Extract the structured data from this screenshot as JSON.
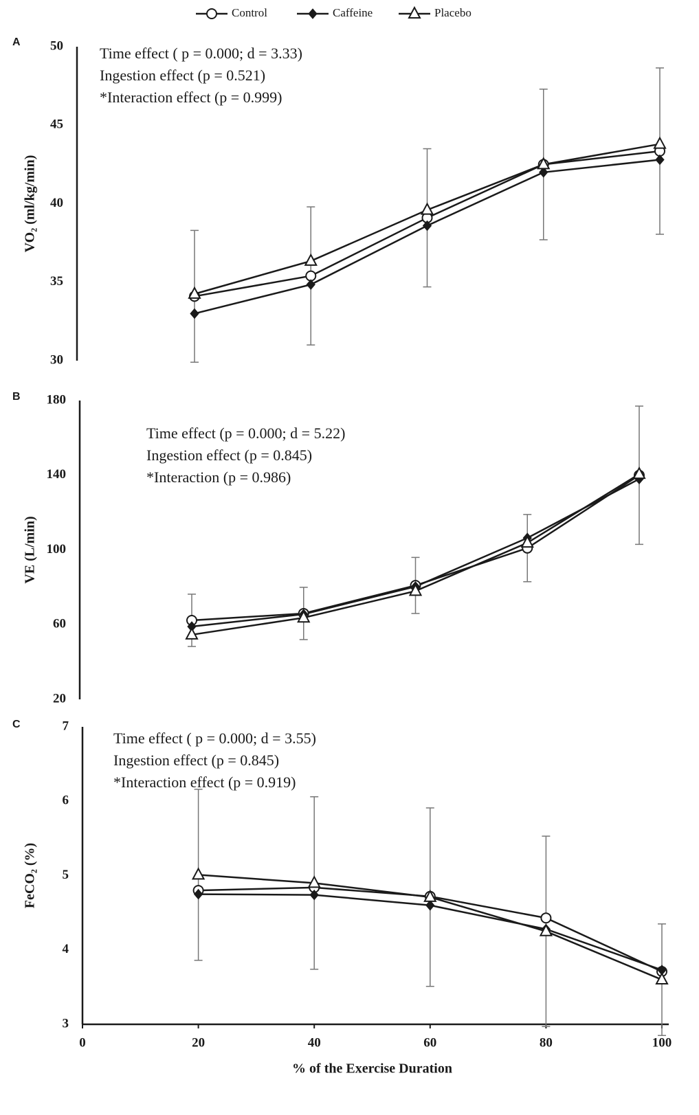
{
  "chart_data": [
    {
      "type": "line",
      "panel": "A",
      "ylabel": "VO₂ (ml/kg/min)",
      "annotations": [
        "Time effect ( p = 0.000;  d = 3.33)",
        "Ingestion effect (p = 0.521)",
        "*Interaction effect (p = 0.999)"
      ],
      "x": [
        20,
        40,
        60,
        80,
        100
      ],
      "ylim": [
        30,
        50
      ],
      "yticks": [
        30,
        35,
        40,
        45,
        50
      ],
      "series": [
        {
          "name": "Control",
          "color": "#1a1a1a",
          "marker": "circle",
          "values": [
            34.1,
            35.4,
            39.1,
            42.5,
            43.35
          ],
          "errors": [
            4.2,
            4.4,
            4.4,
            4.8,
            5.3
          ]
        },
        {
          "name": "Caffeine",
          "color": "#1a1a1a",
          "marker": "diamond",
          "values": [
            33.0,
            34.85,
            38.6,
            42.0,
            42.8
          ]
        },
        {
          "name": "Placebo",
          "color": "#1a1a1a",
          "marker": "triangle",
          "values": [
            34.25,
            36.35,
            39.6,
            42.5,
            43.8
          ]
        }
      ]
    },
    {
      "type": "line",
      "panel": "B",
      "ylabel": "VE (L/min)",
      "annotations": [
        "Time effect (p = 0.000;  d = 5.22)",
        "Ingestion effect (p = 0.845)",
        "*Interaction (p = 0.986)"
      ],
      "x": [
        20,
        40,
        60,
        80,
        100
      ],
      "ylim": [
        20,
        180
      ],
      "yticks": [
        20,
        60,
        100,
        140,
        180
      ],
      "series": [
        {
          "name": "Control",
          "color": "#1a1a1a",
          "marker": "circle",
          "values": [
            62.3,
            66,
            81,
            101,
            140
          ],
          "errors": [
            14,
            14,
            15,
            18,
            37
          ]
        },
        {
          "name": "Caffeine",
          "color": "#1a1a1a",
          "marker": "diamond",
          "values": [
            59,
            65.6,
            80.4,
            106.4,
            138
          ]
        },
        {
          "name": "Placebo",
          "color": "#1a1a1a",
          "marker": "triangle",
          "values": [
            54.6,
            63.7,
            78,
            103.8,
            140.6
          ]
        }
      ]
    },
    {
      "type": "line",
      "panel": "C",
      "ylabel": "FeCO₂ (%)",
      "xlabel": "% of the Exercise Duration",
      "annotations": [
        "Time effect ( p = 0.000;  d = 3.55)",
        "Ingestion effect (p = 0.845)",
        "*Interaction effect (p = 0.919)"
      ],
      "x": [
        20,
        40,
        60,
        80,
        100
      ],
      "xlim": [
        0,
        100
      ],
      "xticks": [
        0,
        20,
        40,
        60,
        80,
        100
      ],
      "ylim": [
        3,
        7
      ],
      "yticks": [
        3,
        4,
        5,
        6,
        7
      ],
      "series": [
        {
          "name": "Control",
          "color": "#1a1a1a",
          "marker": "circle",
          "values": [
            4.8,
            4.84,
            4.72,
            4.43,
            3.71
          ]
        },
        {
          "name": "Caffeine",
          "color": "#1a1a1a",
          "marker": "diamond",
          "values": [
            4.75,
            4.74,
            4.6,
            4.28,
            3.73
          ]
        },
        {
          "name": "Placebo",
          "color": "#1a1a1a",
          "marker": "triangle",
          "values": [
            5.01,
            4.9,
            4.71,
            4.25,
            3.6
          ],
          "errors": [
            1.15,
            1.16,
            1.2,
            1.28,
            0.75
          ]
        }
      ]
    }
  ]
}
